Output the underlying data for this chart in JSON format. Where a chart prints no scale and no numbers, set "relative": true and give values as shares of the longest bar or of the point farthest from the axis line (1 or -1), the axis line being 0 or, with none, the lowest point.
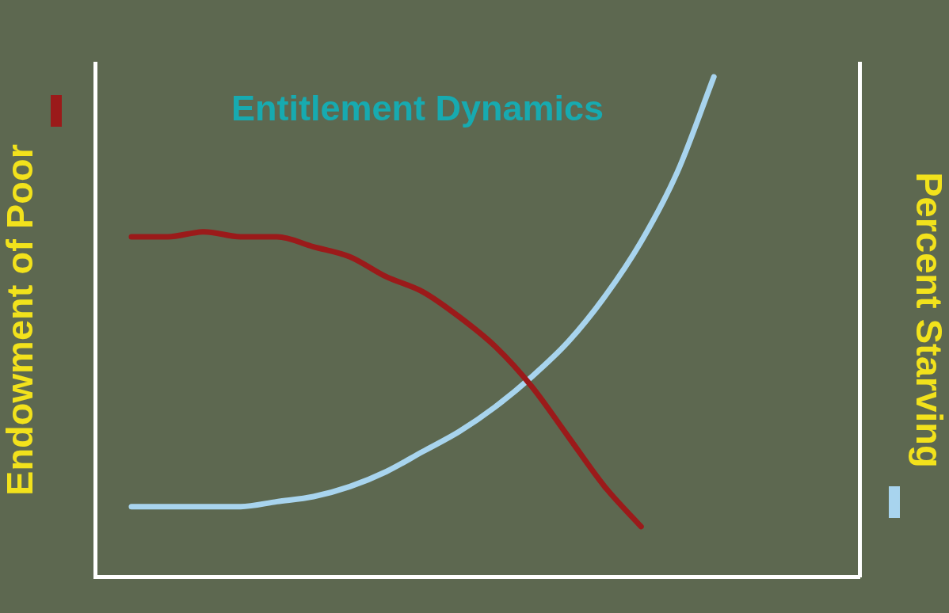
{
  "chart_data": {
    "type": "line",
    "title": "Entitlement Dynamics",
    "ylabel": "Endowment of Poor",
    "y2label": "Percent Starving",
    "relative": true,
    "grid": false,
    "legend": false,
    "marker": "none",
    "line_style": "solid",
    "categories": [
      null,
      null,
      null,
      null,
      null,
      null,
      null,
      null,
      null,
      null,
      null,
      null,
      null,
      null,
      null,
      null,
      null,
      null,
      null,
      null,
      null,
      null
    ],
    "series": [
      {
        "color": "#9b1a1a",
        "values": [
          null,
          0.68,
          0.68,
          0.69,
          0.68,
          0.68,
          0.66,
          0.64,
          0.6,
          0.57,
          0.52,
          0.46,
          0.38,
          0.28,
          0.18,
          0.1,
          null,
          null,
          null,
          null,
          null,
          null
        ]
      },
      {
        "color": "#a8d4ee",
        "values": [
          null,
          0.14,
          0.14,
          0.14,
          0.14,
          0.15,
          0.16,
          0.18,
          0.21,
          0.25,
          0.29,
          0.34,
          0.4,
          0.47,
          0.56,
          0.67,
          0.81,
          1,
          null,
          null,
          null,
          null
        ]
      }
    ]
  }
}
